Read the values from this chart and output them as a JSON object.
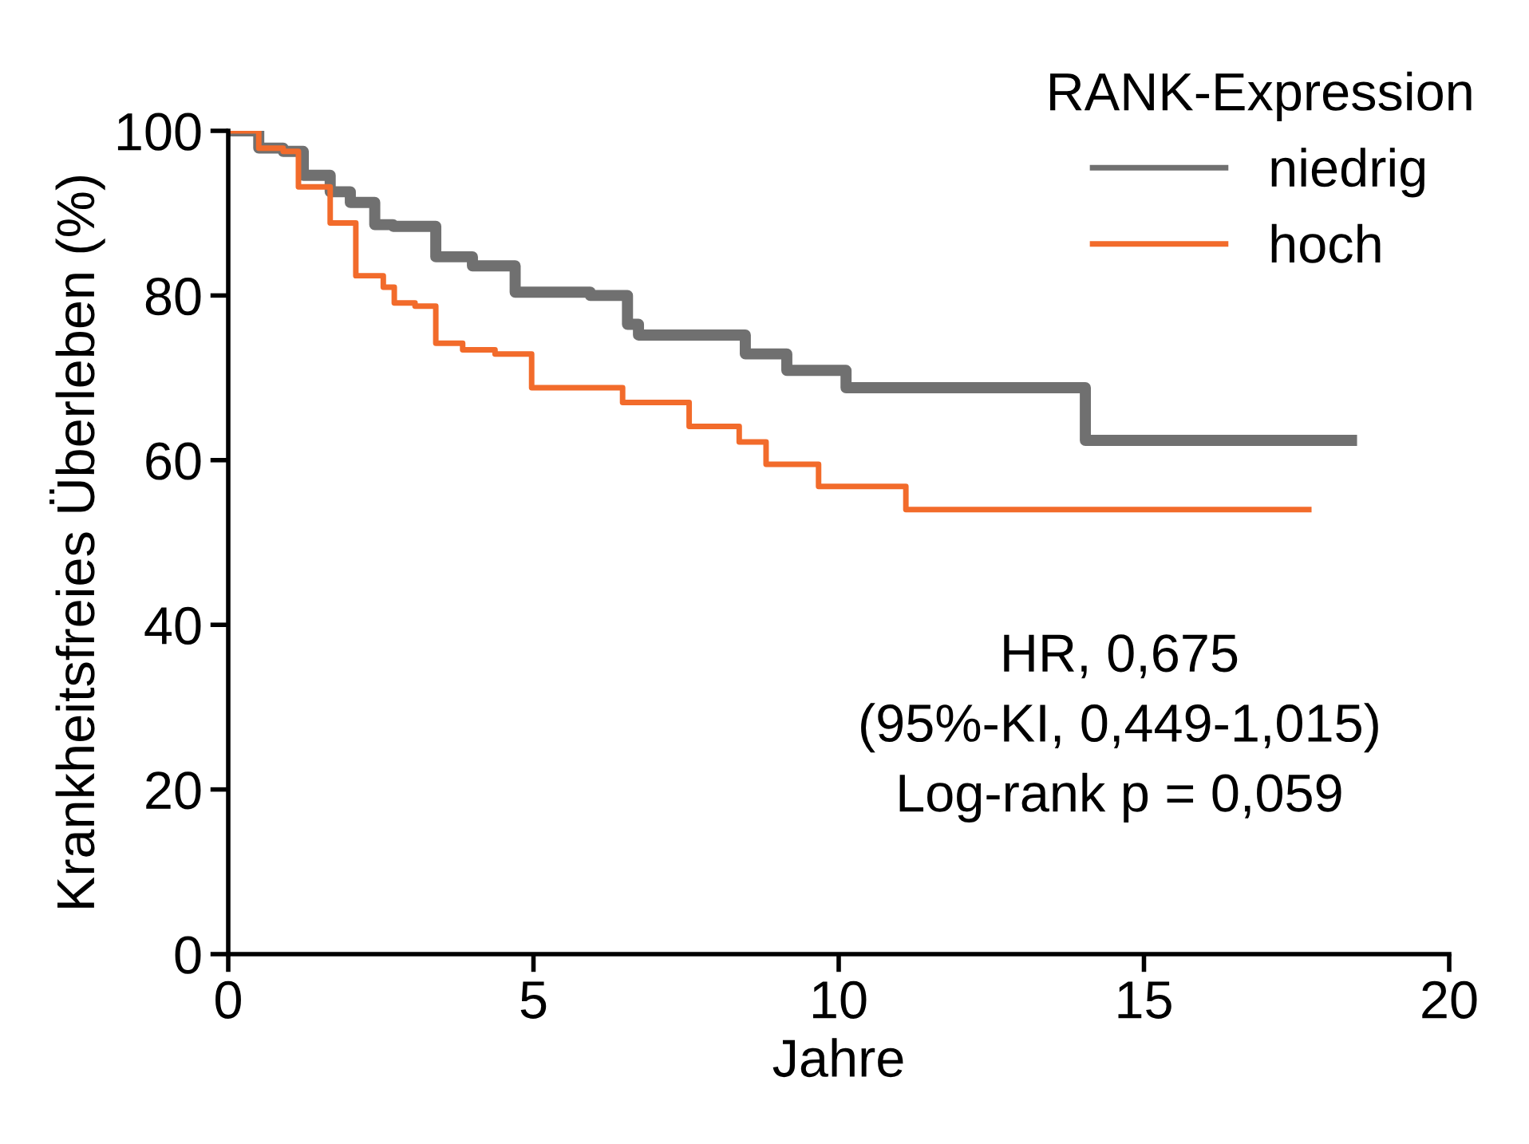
{
  "chart_data": {
    "type": "step",
    "xlabel": "Jahre",
    "ylabel": "Krankheitsfreies Überleben (%)",
    "legend_title": "RANK-Expression",
    "legend": "top right",
    "grid": false,
    "marker": "none",
    "line_style": "solid",
    "xlim": [
      0,
      20
    ],
    "ylim": [
      0,
      100
    ],
    "xticks": [
      0,
      5,
      10,
      15,
      20
    ],
    "yticks": [
      0,
      20,
      40,
      60,
      80,
      100
    ],
    "series": [
      {
        "name": "niedrig",
        "color": "#707070",
        "x": [
          0,
          0.5,
          0.9,
          1.23,
          1.67,
          2.0,
          2.4,
          2.7,
          3.4,
          4.0,
          4.7,
          5.93,
          6.54,
          6.72,
          8.47,
          9.15,
          10.12,
          14.04,
          18.4
        ],
        "values": [
          100,
          97.9,
          97.5,
          94.6,
          92.6,
          91.3,
          88.6,
          88.4,
          84.7,
          83.6,
          80.4,
          80.0,
          76.5,
          75.2,
          72.9,
          70.9,
          68.8,
          62.4,
          62.4
        ]
      },
      {
        "name": "hoch",
        "color": "#f26b2b",
        "x": [
          0,
          0.5,
          0.9,
          1.15,
          1.67,
          2.09,
          2.54,
          2.72,
          3.06,
          3.4,
          3.84,
          4.37,
          4.97,
          6.46,
          7.55,
          8.37,
          8.81,
          9.67,
          11.1,
          17.7
        ],
        "values": [
          100,
          97.9,
          97.5,
          93.2,
          88.8,
          82.4,
          81.0,
          79.1,
          78.7,
          74.2,
          73.4,
          72.9,
          68.8,
          67.0,
          64.1,
          62.2,
          59.5,
          56.8,
          54.0,
          54.0
        ]
      }
    ],
    "annotations": [
      "HR, 0,675",
      "(95%-KI, 0,449-1,015)",
      "Log-rank p = 0,059"
    ]
  }
}
